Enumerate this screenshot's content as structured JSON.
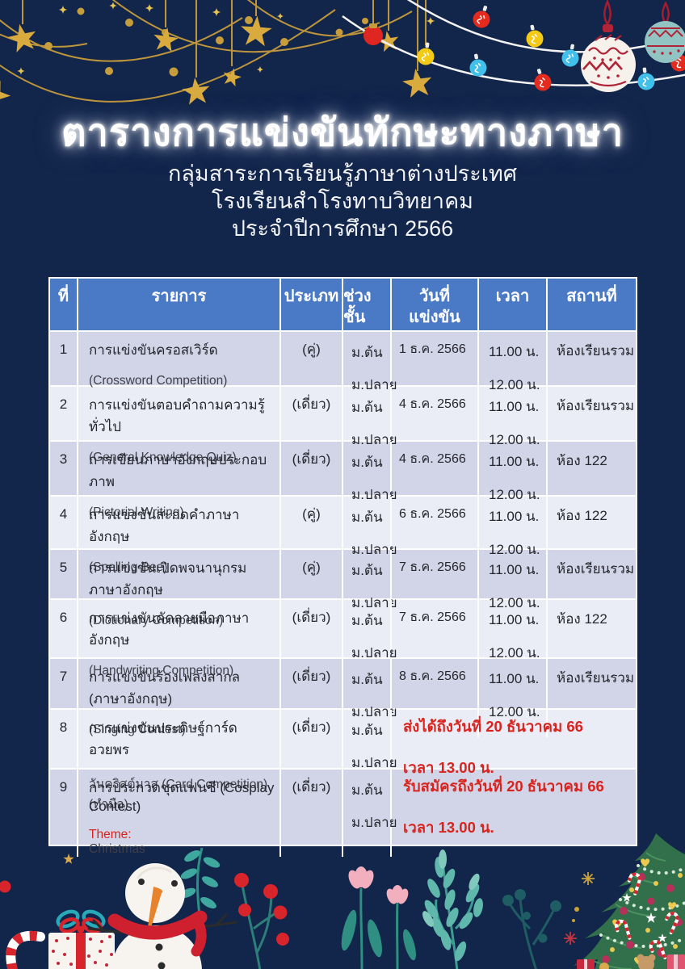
{
  "colors": {
    "background": "#12254a",
    "table_header": "#4a79c6",
    "row_dark": "#d2d5e7",
    "row_light": "#eaecf6",
    "highlight_red": "#d8241f",
    "gold": "#d4a93c",
    "text_dark": "#26262e"
  },
  "header": {
    "title": "ตารางการแข่งขันทักษะทางภาษา",
    "subtitle_lines": [
      "กลุ่มสาระการเรียนรู้ภาษาต่างประเทศ",
      "โรงเรียนสำโรงทาบวิทยาคม",
      "ประจำปีการศึกษา 2566"
    ]
  },
  "table": {
    "columns": [
      {
        "key": "no",
        "label": "ที่"
      },
      {
        "key": "item",
        "label": "รายการ"
      },
      {
        "key": "type",
        "label": "ประเภท"
      },
      {
        "key": "level",
        "label": "ช่วงชั้น"
      },
      {
        "key": "date",
        "label": "วันที่แข่งขัน",
        "label_lines": [
          "วันที่",
          "แข่งขัน"
        ]
      },
      {
        "key": "time",
        "label": "เวลา"
      },
      {
        "key": "venue",
        "label": "สถานที่"
      }
    ],
    "rows": [
      {
        "no": "1",
        "item_lines": [
          "การแข่งขันครอสเวิร์ด",
          "(Crossword Competition)"
        ],
        "type": "(คู่)",
        "levels": [
          "ม.ต้น",
          "ม.ปลาย"
        ],
        "date": "1 ธ.ค. 2566",
        "times": [
          "11.00 น.",
          "12.00 น."
        ],
        "venue": "ห้องเรียนรวม"
      },
      {
        "no": "2",
        "item_lines": [
          "การแข่งขันตอบคำถามความรู้ทั่วไป",
          "(General Knowledge Quiz)"
        ],
        "type": "(เดี่ยว)",
        "levels": [
          "ม.ต้น",
          "ม.ปลาย"
        ],
        "date": "4 ธ.ค. 2566",
        "times": [
          "11.00 น.",
          "12.00 น."
        ],
        "venue": "ห้องเรียนรวม"
      },
      {
        "no": "3",
        "item_lines": [
          "การเขียนภาษาอังกฤษประกอบภาพ",
          "(Pictorial Writing)"
        ],
        "type": "(เดี่ยว)",
        "levels": [
          "ม.ต้น",
          "ม.ปลาย"
        ],
        "date": "4 ธ.ค. 2566",
        "times": [
          "11.00 น.",
          "12.00 น."
        ],
        "venue": "ห้อง 122"
      },
      {
        "no": "4",
        "item_lines": [
          "การแข่งขันสะกดคำภาษาอังกฤษ",
          "(Spelling Bee)"
        ],
        "type": "(คู่)",
        "levels": [
          "ม.ต้น",
          "ม.ปลาย"
        ],
        "date": "6 ธ.ค. 2566",
        "times": [
          "11.00 น.",
          "12.00 น."
        ],
        "venue": "ห้อง 122"
      },
      {
        "no": "5",
        "item_lines": [
          "การแข่งขันเปิดพจนานุกรมภาษาอังกฤษ",
          "(Dictionary Competition)"
        ],
        "type": "(คู่)",
        "levels": [
          "ม.ต้น",
          "ม.ปลาย"
        ],
        "date": "7 ธ.ค. 2566",
        "times": [
          "11.00 น.",
          "12.00 น."
        ],
        "venue": "ห้องเรียนรวม"
      },
      {
        "no": "6",
        "item_lines": [
          "การแข่งขันคัดลายมือภาษาอังกฤษ",
          "(Handwriting Competition)"
        ],
        "type": "(เดี่ยว)",
        "levels": [
          "ม.ต้น",
          "ม.ปลาย"
        ],
        "date": "7 ธ.ค. 2566",
        "times": [
          "11.00 น.",
          "12.00 น."
        ],
        "venue": "ห้อง 122"
      },
      {
        "no": "7",
        "item_lines": [
          "การแข่งขันร้องเพลงสากล (ภาษาอังกฤษ)",
          "(Singing Contest)"
        ],
        "type": "(เดี่ยว)",
        "levels": [
          "ม.ต้น",
          "ม.ปลาย"
        ],
        "date": "8 ธ.ค. 2566",
        "times": [
          "11.00 น.",
          "12.00 น."
        ],
        "venue": "ห้องเรียนรวม"
      },
      {
        "no": "8",
        "item_lines": [
          "การแข่งขันประดิษฐ์การ์ดอวยพร",
          "วันคริสต์มาส (Card Competition) (ทำมือ)"
        ],
        "type": "(เดี่ยว)",
        "levels": [
          "ม.ต้น",
          "ม.ปลาย"
        ],
        "note_lines": [
          "ส่งได้ถึงวันที่ 20 ธันวาคม 66",
          "เวลา 13.00 น."
        ]
      },
      {
        "no": "9",
        "item_lines": [
          "การประกวดชุดแฟนซี (Cosplay Contest)"
        ],
        "item_accent": {
          "prefix": "Theme:",
          "rest": " Christmas"
        },
        "type": "(เดี่ยว)",
        "levels": [
          "ม.ต้น",
          "ม.ปลาย"
        ],
        "note_lines": [
          "รับสมัครถึงวันที่ 20 ธันวาคม 66",
          "เวลา 13.00 น."
        ]
      }
    ]
  },
  "decorations": {
    "top": [
      "gold-star-garland",
      "sparkles",
      "string-lights",
      "bauble-ornaments"
    ],
    "bottom": [
      "snowman",
      "gift-box",
      "candy-cane",
      "berry-branch",
      "tulip-flowers",
      "teal-foliage",
      "christmas-tree",
      "sparkles"
    ]
  }
}
